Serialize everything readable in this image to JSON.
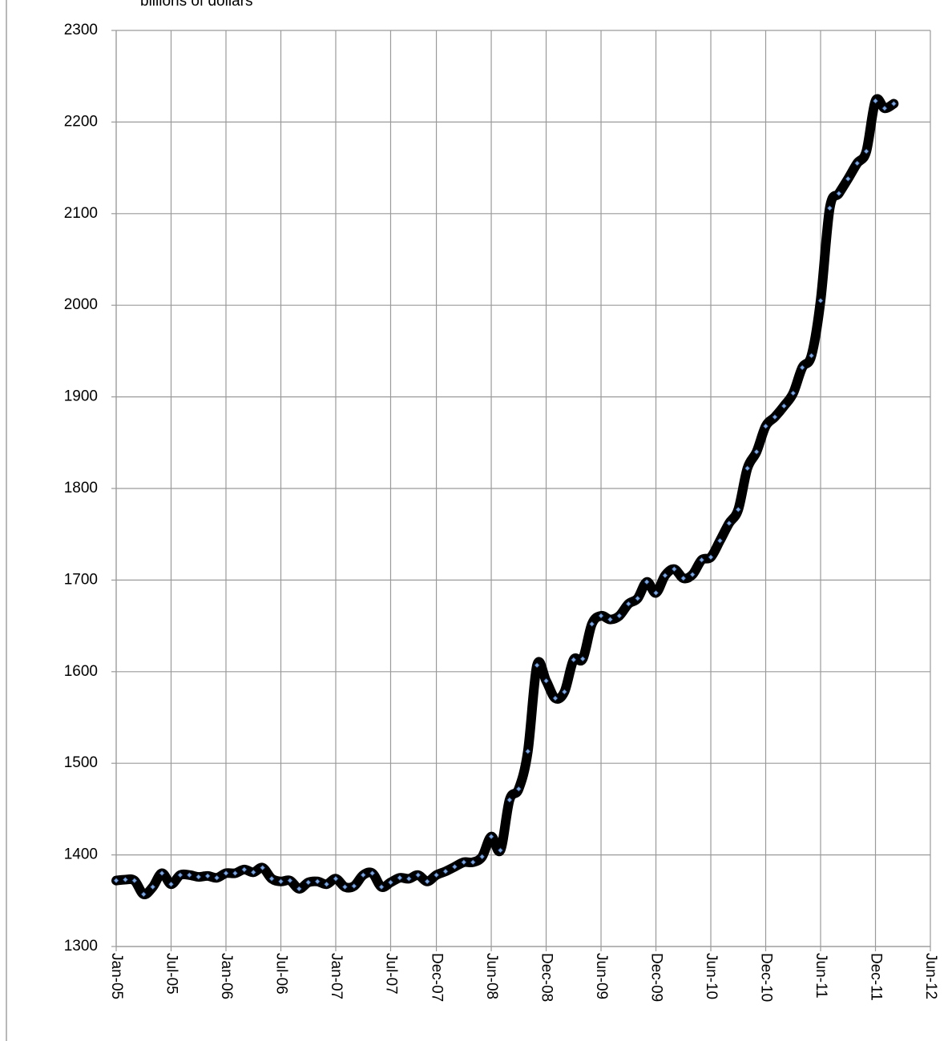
{
  "chart_data": {
    "type": "line",
    "title": "billions of dollars",
    "x": [
      "2005-01",
      "2005-02",
      "2005-03",
      "2005-04",
      "2005-05",
      "2005-06",
      "2005-07",
      "2005-08",
      "2005-09",
      "2005-10",
      "2005-11",
      "2005-12",
      "2006-01",
      "2006-02",
      "2006-03",
      "2006-04",
      "2006-05",
      "2006-06",
      "2006-07",
      "2006-08",
      "2006-09",
      "2006-10",
      "2006-11",
      "2006-12",
      "2007-01",
      "2007-02",
      "2007-03",
      "2007-04",
      "2007-05",
      "2007-06",
      "2007-07",
      "2007-08",
      "2007-09",
      "2007-10",
      "2007-11",
      "2007-12",
      "2008-01",
      "2008-02",
      "2008-03",
      "2008-04",
      "2008-05",
      "2008-06",
      "2008-07",
      "2008-08",
      "2008-09",
      "2008-10",
      "2008-11",
      "2008-12",
      "2009-01",
      "2009-02",
      "2009-03",
      "2009-04",
      "2009-05",
      "2009-06",
      "2009-07",
      "2009-08",
      "2009-09",
      "2009-10",
      "2009-11",
      "2009-12",
      "2010-01",
      "2010-02",
      "2010-03",
      "2010-04",
      "2010-05",
      "2010-06",
      "2010-07",
      "2010-08",
      "2010-09",
      "2010-10",
      "2010-11",
      "2010-12",
      "2011-01",
      "2011-02",
      "2011-03",
      "2011-04",
      "2011-05",
      "2011-06",
      "2011-07",
      "2011-08",
      "2011-09",
      "2011-10",
      "2011-11",
      "2011-12",
      "2012-01",
      "2012-02"
    ],
    "series": [
      {
        "color": "#000000",
        "marker_color": "#7fa7dc",
        "values": [
          1372,
          1373,
          1372,
          1357,
          1365,
          1380,
          1368,
          1378,
          1378,
          1376,
          1377,
          1375,
          1380,
          1380,
          1384,
          1381,
          1386,
          1374,
          1371,
          1372,
          1363,
          1370,
          1371,
          1368,
          1374,
          1365,
          1366,
          1378,
          1380,
          1365,
          1370,
          1375,
          1374,
          1378,
          1371,
          1378,
          1382,
          1387,
          1392,
          1392,
          1398,
          1420,
          1405,
          1460,
          1472,
          1513,
          1607,
          1590,
          1571,
          1578,
          1613,
          1614,
          1652,
          1661,
          1657,
          1661,
          1674,
          1680,
          1698,
          1686,
          1705,
          1712,
          1702,
          1706,
          1722,
          1725,
          1743,
          1762,
          1777,
          1822,
          1840,
          1868,
          1878,
          1890,
          1904,
          1932,
          1945,
          2005,
          2106,
          2122,
          2138,
          2155,
          2168,
          2223,
          2215,
          2220
        ]
      }
    ],
    "xlim": [
      "2005-01",
      "2012-06"
    ],
    "xticks": [
      {
        "value": "2005-01",
        "label": "Jan-05"
      },
      {
        "value": "2005-07",
        "label": "Jul-05"
      },
      {
        "value": "2006-01",
        "label": "Jan-06"
      },
      {
        "value": "2006-07",
        "label": "Jul-06"
      },
      {
        "value": "2007-01",
        "label": "Jan-07"
      },
      {
        "value": "2007-07",
        "label": "Jul-07"
      },
      {
        "value": "2007-12",
        "label": "Dec-07"
      },
      {
        "value": "2008-06",
        "label": "Jun-08"
      },
      {
        "value": "2008-12",
        "label": "Dec-08"
      },
      {
        "value": "2009-06",
        "label": "Jun-09"
      },
      {
        "value": "2009-12",
        "label": "Dec-09"
      },
      {
        "value": "2010-06",
        "label": "Jun-10"
      },
      {
        "value": "2010-12",
        "label": "Dec-10"
      },
      {
        "value": "2011-06",
        "label": "Jun-11"
      },
      {
        "value": "2011-12",
        "label": "Dec-11"
      },
      {
        "value": "2012-06",
        "label": "Jun-12"
      }
    ],
    "ylim": [
      1300,
      2300
    ],
    "yticks": [
      1300,
      1400,
      1500,
      1600,
      1700,
      1800,
      1900,
      2000,
      2100,
      2200,
      2300
    ],
    "grid": true
  }
}
